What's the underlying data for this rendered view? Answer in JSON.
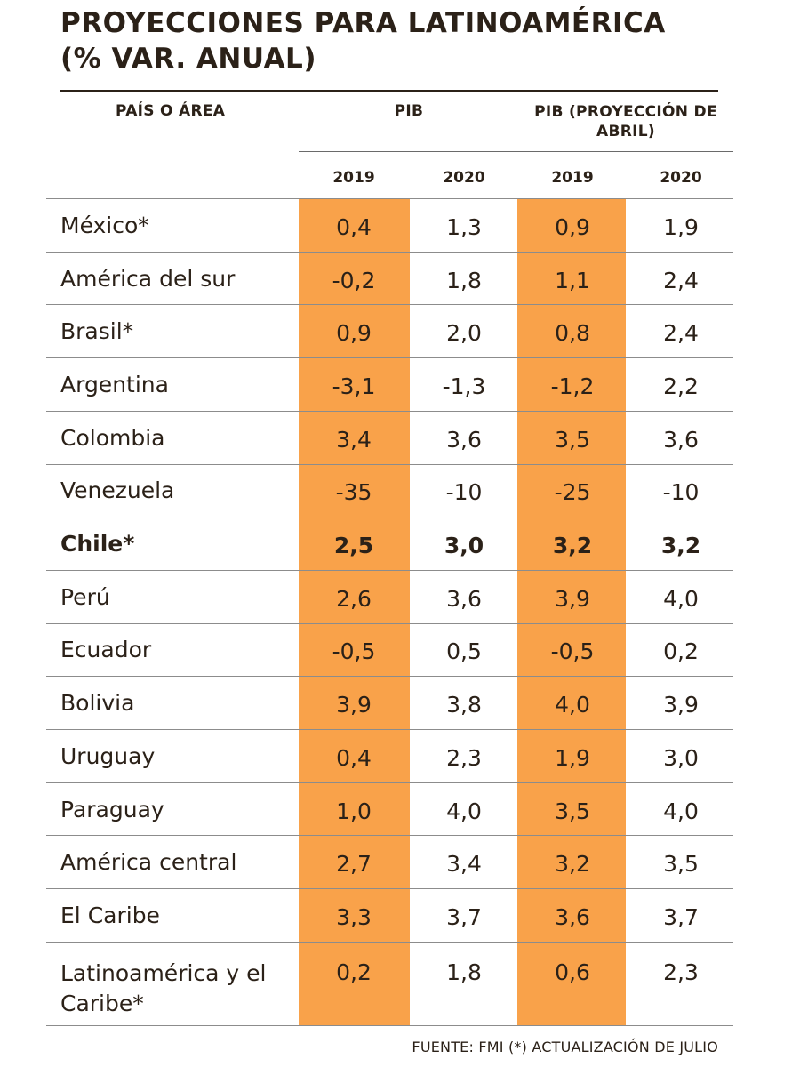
{
  "title": {
    "line1": "PROYECCIONES PARA LATINOAMÉRICA",
    "line2": "(% VAR. ANUAL)"
  },
  "source": "FUENTE: FMI (*) ACTUALIZACIÓN DE JULIO",
  "colors": {
    "highlight": "#f9a24a",
    "text": "#2b2118"
  },
  "chart_data": {
    "type": "table",
    "headers": {
      "country": "PAÍS O ÁREA",
      "group1": "PIB",
      "group2": "PIB (PROYECCIÓN DE ABRIL)",
      "years": [
        "2019",
        "2020",
        "2019",
        "2020"
      ]
    },
    "rows": [
      {
        "name": "México*",
        "values": [
          "0,4",
          "1,3",
          "0,9",
          "1,9"
        ],
        "bold": false
      },
      {
        "name": "América del sur",
        "values": [
          "-0,2",
          "1,8",
          "1,1",
          "2,4"
        ],
        "bold": false
      },
      {
        "name": "Brasil*",
        "values": [
          "0,9",
          "2,0",
          "0,8",
          "2,4"
        ],
        "bold": false
      },
      {
        "name": "Argentina",
        "values": [
          "-3,1",
          "-1,3",
          "-1,2",
          "2,2"
        ],
        "bold": false
      },
      {
        "name": "Colombia",
        "values": [
          "3,4",
          "3,6",
          "3,5",
          "3,6"
        ],
        "bold": false
      },
      {
        "name": "Venezuela",
        "values": [
          "-35",
          "-10",
          "-25",
          "-10"
        ],
        "bold": false
      },
      {
        "name": "Chile*",
        "values": [
          "2,5",
          "3,0",
          "3,2",
          "3,2"
        ],
        "bold": true
      },
      {
        "name": "Perú",
        "values": [
          "2,6",
          "3,6",
          "3,9",
          "4,0"
        ],
        "bold": false
      },
      {
        "name": "Ecuador",
        "values": [
          "-0,5",
          "0,5",
          "-0,5",
          "0,2"
        ],
        "bold": false
      },
      {
        "name": "Bolivia",
        "values": [
          "3,9",
          "3,8",
          "4,0",
          "3,9"
        ],
        "bold": false
      },
      {
        "name": "Uruguay",
        "values": [
          "0,4",
          "2,3",
          "1,9",
          "3,0"
        ],
        "bold": false
      },
      {
        "name": "Paraguay",
        "values": [
          "1,0",
          "4,0",
          "3,5",
          "4,0"
        ],
        "bold": false
      },
      {
        "name": "América central",
        "values": [
          "2,7",
          "3,4",
          "3,2",
          "3,5"
        ],
        "bold": false
      },
      {
        "name": "El Caribe",
        "values": [
          "3,3",
          "3,7",
          "3,6",
          "3,7"
        ],
        "bold": false
      },
      {
        "name": "Latinoamérica y el Caribe*",
        "values": [
          "0,2",
          "1,8",
          "0,6",
          "2,3"
        ],
        "bold": false
      }
    ]
  }
}
